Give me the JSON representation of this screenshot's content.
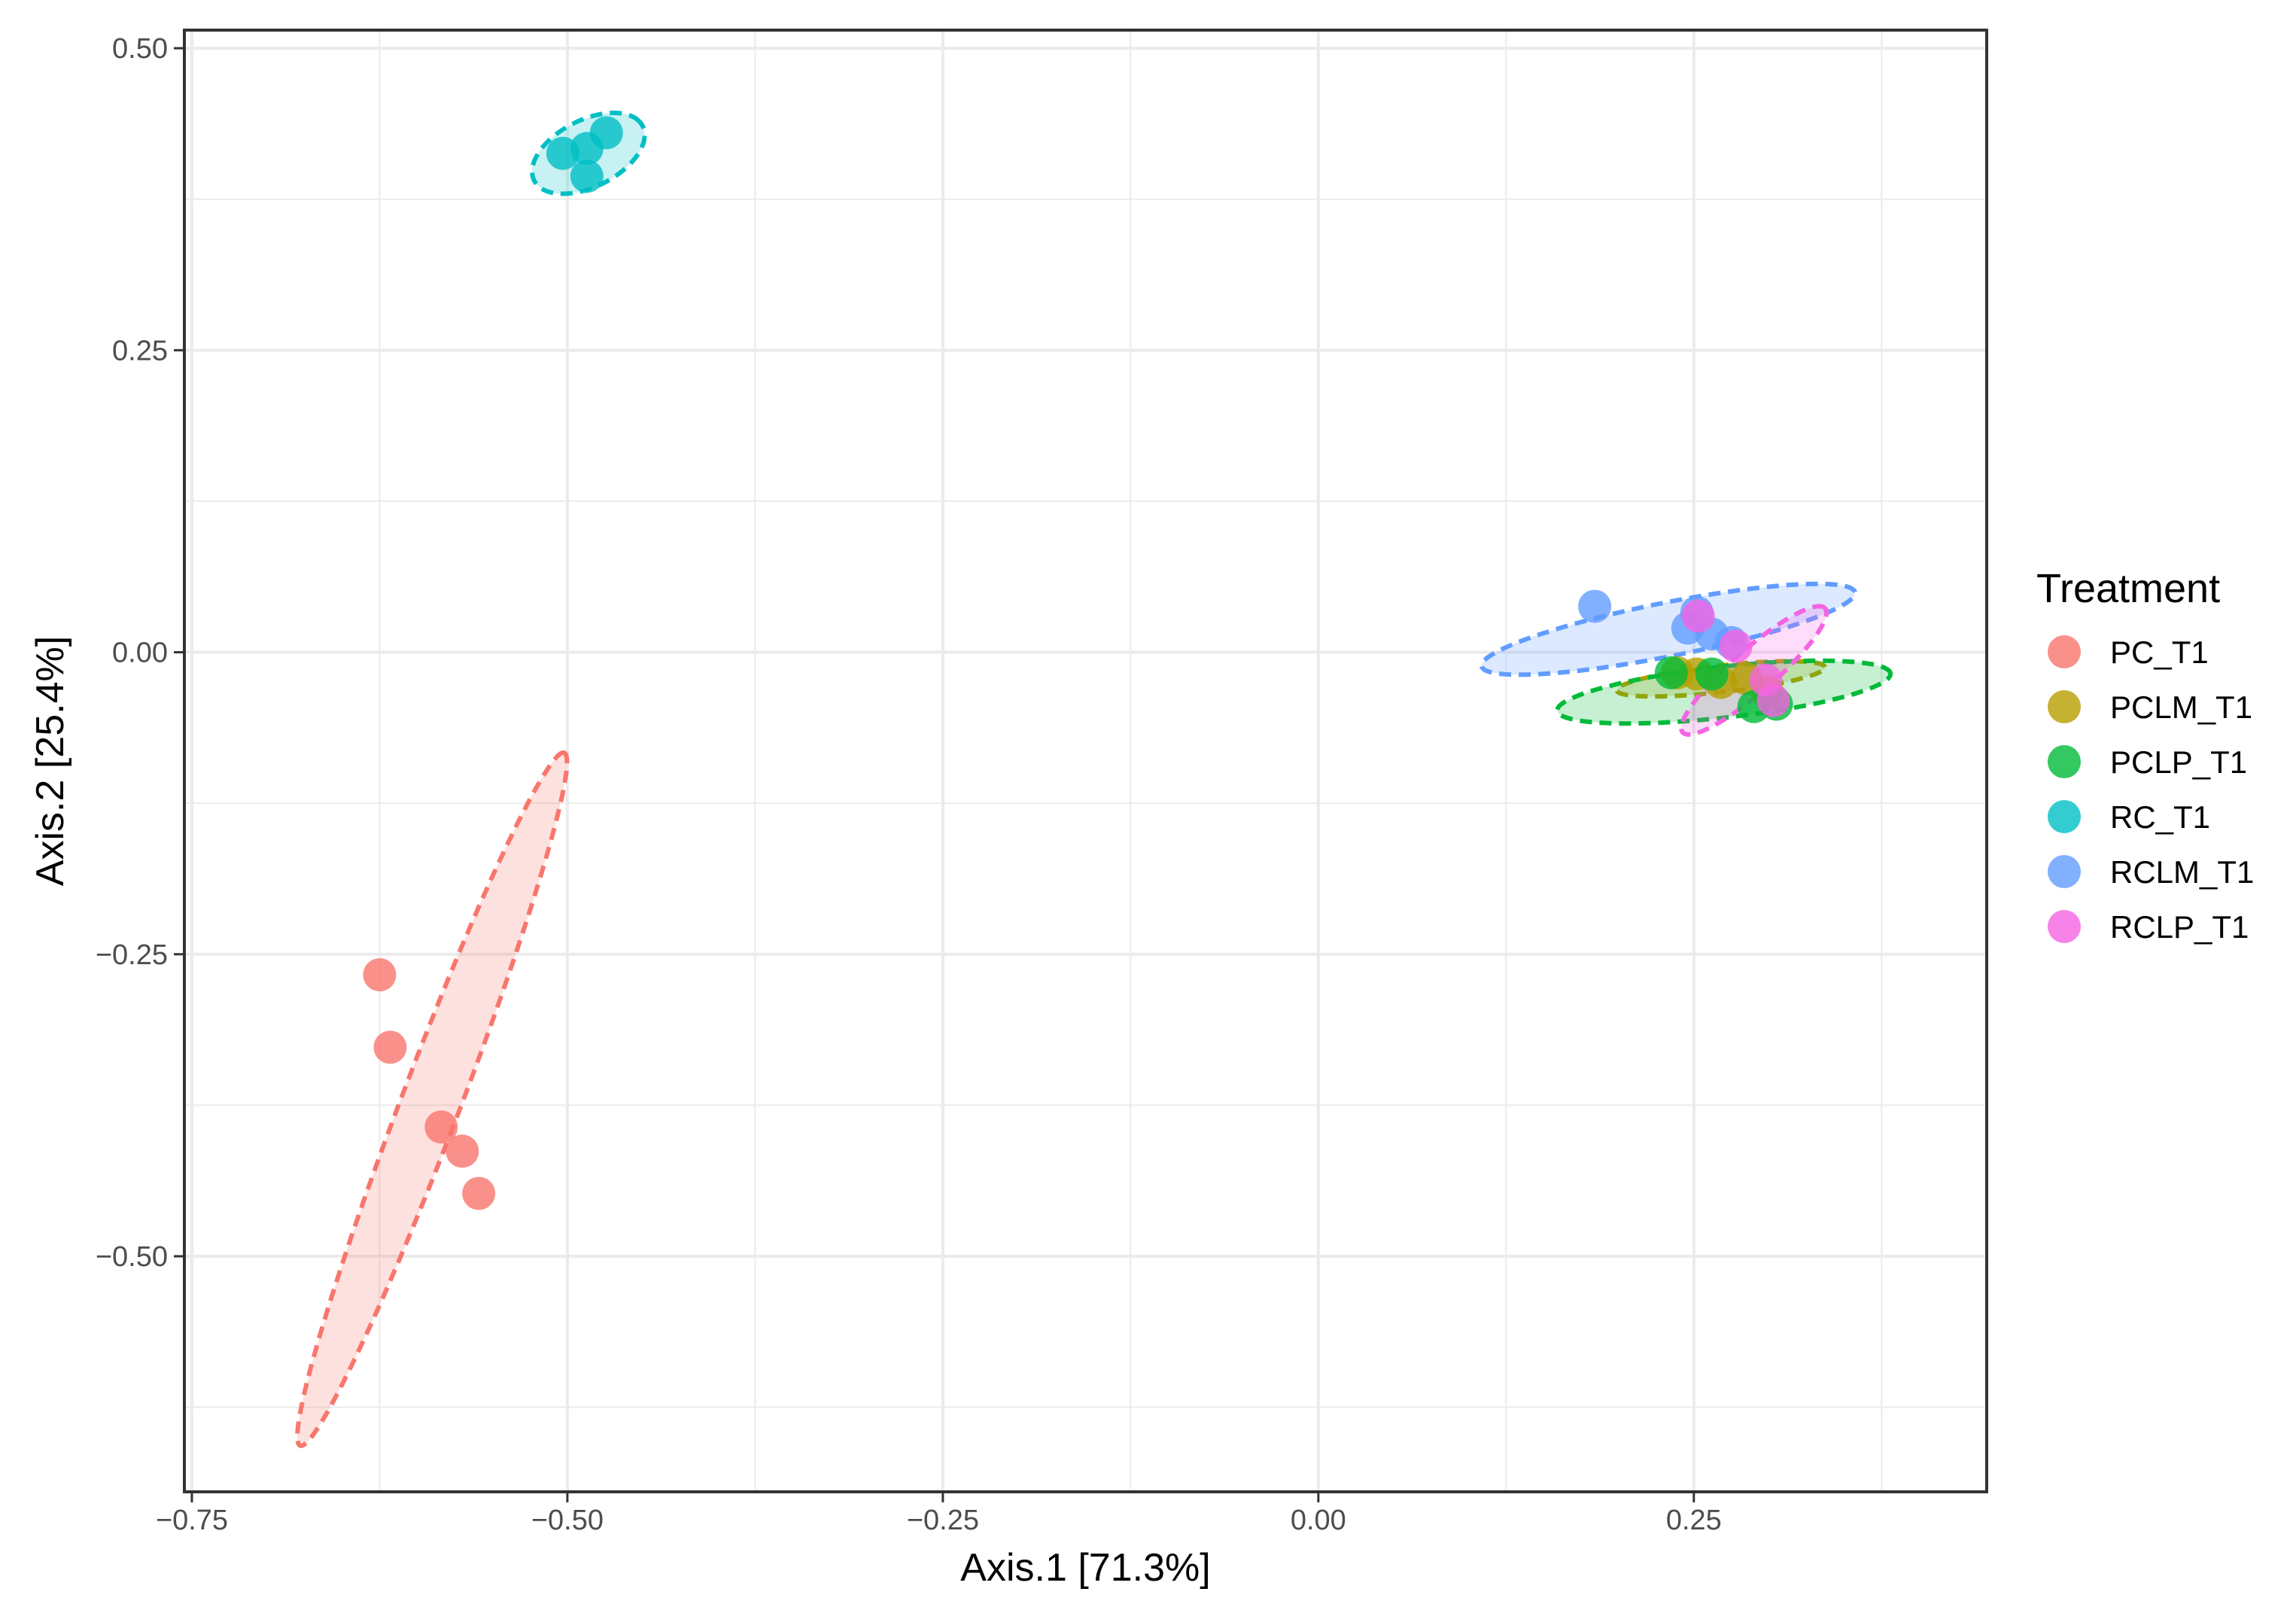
{
  "chart_data": {
    "type": "scatter",
    "title": "",
    "xlabel": "Axis.1   [71.3%]",
    "ylabel": "Axis.2   [25.4%]",
    "xlim": [
      -0.755,
      0.445
    ],
    "ylim": [
      -0.695,
      0.515
    ],
    "xticks": [
      -0.75,
      -0.5,
      -0.25,
      0.0,
      0.25
    ],
    "xtick_labels": [
      "−0.75",
      "−0.50",
      "−0.25",
      "0.00",
      "0.25"
    ],
    "yticks": [
      0.5,
      0.25,
      0.0,
      -0.25,
      -0.5
    ],
    "ytick_labels": [
      "0.50",
      "0.25",
      "0.00",
      "−0.25",
      "−0.50"
    ],
    "grid": true,
    "legend_title": "Treatment",
    "legend_position": "right",
    "series": [
      {
        "name": "PC_T1",
        "color": "#F8766D",
        "points": [
          [
            -0.625,
            -0.267
          ],
          [
            -0.618,
            -0.327
          ],
          [
            -0.584,
            -0.393
          ],
          [
            -0.57,
            -0.413
          ],
          [
            -0.559,
            -0.448
          ]
        ],
        "ellipse": {
          "center": [
            -0.59,
            -0.37
          ],
          "rx": 0.3,
          "ry": 0.02,
          "angle": 73
        }
      },
      {
        "name": "PCLM_T1",
        "color": "#B79F00",
        "points": [
          [
            0.239,
            -0.017
          ],
          [
            0.252,
            -0.018
          ],
          [
            0.268,
            -0.025
          ],
          [
            0.285,
            -0.022
          ],
          [
            0.299,
            -0.033
          ]
        ],
        "ellipse": {
          "center": [
            0.268,
            -0.022
          ],
          "rx": 0.07,
          "ry": 0.011,
          "angle": 8
        }
      },
      {
        "name": "PCLP_T1",
        "color": "#00BA38",
        "points": [
          [
            0.235,
            -0.017
          ],
          [
            0.262,
            -0.018
          ],
          [
            0.29,
            -0.045
          ],
          [
            0.305,
            -0.043
          ]
        ],
        "ellipse": {
          "center": [
            0.27,
            -0.033
          ],
          "rx": 0.112,
          "ry": 0.021,
          "angle": 8
        }
      },
      {
        "name": "RC_T1",
        "color": "#00BFC4",
        "points": [
          [
            -0.503,
            0.413
          ],
          [
            -0.487,
            0.417
          ],
          [
            -0.474,
            0.43
          ],
          [
            -0.487,
            0.394
          ]
        ],
        "ellipse": {
          "center": [
            -0.486,
            0.413
          ],
          "rx": 0.043,
          "ry": 0.026,
          "angle": 38
        }
      },
      {
        "name": "RCLM_T1",
        "color": "#619CFF",
        "points": [
          [
            0.184,
            0.038
          ],
          [
            0.246,
            0.02
          ],
          [
            0.252,
            0.033
          ],
          [
            0.262,
            0.015
          ],
          [
            0.275,
            0.008
          ]
        ],
        "ellipse": {
          "center": [
            0.233,
            0.019
          ],
          "rx": 0.128,
          "ry": 0.022,
          "angle": 14
        }
      },
      {
        "name": "RCLP_T1",
        "color": "#F564E3",
        "points": [
          [
            0.253,
            0.03
          ],
          [
            0.278,
            0.005
          ],
          [
            0.298,
            -0.023
          ],
          [
            0.303,
            -0.04
          ]
        ],
        "ellipse": {
          "center": [
            0.29,
            -0.015
          ],
          "rx": 0.07,
          "ry": 0.016,
          "angle": 48
        }
      }
    ]
  }
}
